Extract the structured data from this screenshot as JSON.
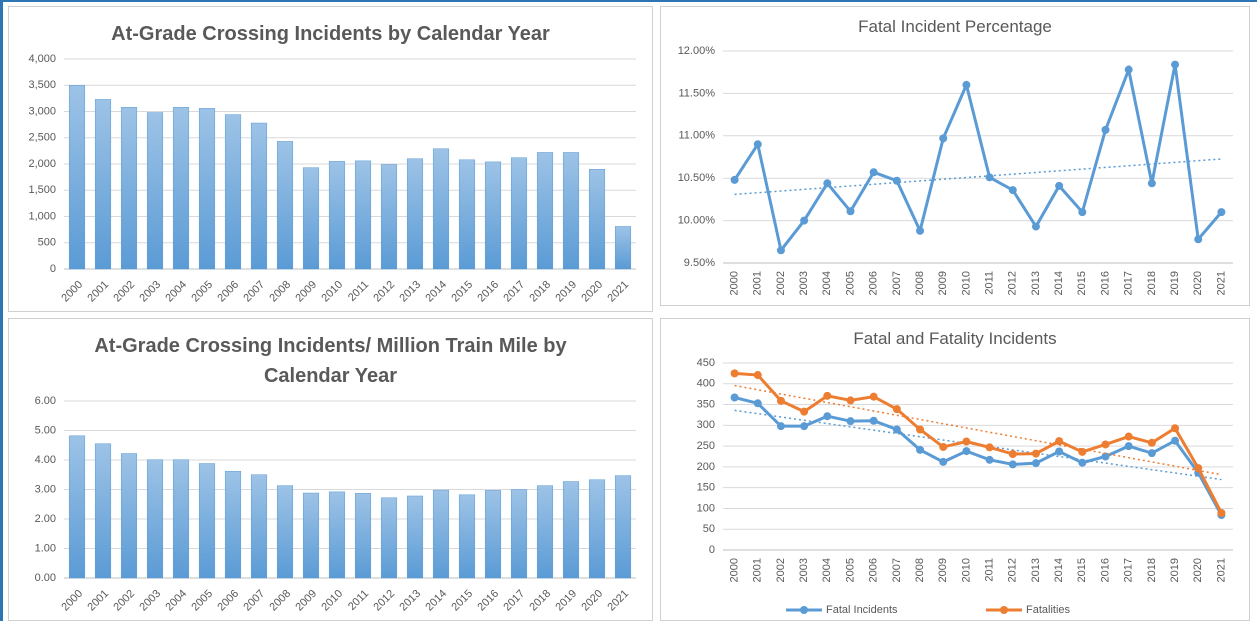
{
  "chart_data": [
    {
      "type": "bar",
      "title": "At-Grade Crossing Incidents by Calendar Year",
      "categories": [
        "2000",
        "2001",
        "2002",
        "2003",
        "2004",
        "2005",
        "2006",
        "2007",
        "2008",
        "2009",
        "2010",
        "2011",
        "2012",
        "2013",
        "2014",
        "2015",
        "2016",
        "2017",
        "2018",
        "2019",
        "2020",
        "2021"
      ],
      "values": [
        3500,
        3230,
        3080,
        2980,
        3080,
        3060,
        2940,
        2780,
        2430,
        1930,
        2050,
        2060,
        1990,
        2100,
        2290,
        2080,
        2040,
        2120,
        2220,
        2220,
        1900,
        810
      ],
      "color": "#5b9bd5",
      "ylim": [
        0,
        4000
      ],
      "yticks": [
        0,
        500,
        {
          "value": 1000,
          "label": "1,000"
        },
        {
          "value": 1500,
          "label": "1,500"
        },
        {
          "value": 2000,
          "label": "2,000"
        },
        {
          "value": 2500,
          "label": "2,500"
        },
        {
          "value": 3000,
          "label": "3,000"
        },
        {
          "value": 3500,
          "label": "3,500"
        },
        {
          "value": 4000,
          "label": "4,000"
        }
      ],
      "grid": true
    },
    {
      "type": "line",
      "title": "Fatal Incident Percentage",
      "categories": [
        "2000",
        "2001",
        "2002",
        "2003",
        "2004",
        "2005",
        "2006",
        "2007",
        "2008",
        "2009",
        "2010",
        "2011",
        "2012",
        "2013",
        "2014",
        "2015",
        "2016",
        "2017",
        "2018",
        "2019",
        "2020",
        "2021"
      ],
      "series": [
        {
          "name": "Fatal Incident Percentage",
          "color": "#5b9bd5",
          "values": [
            10.48,
            10.9,
            9.65,
            10.0,
            10.44,
            10.11,
            10.57,
            10.47,
            9.88,
            10.97,
            11.6,
            10.51,
            10.36,
            9.93,
            10.41,
            10.1,
            11.07,
            11.78,
            10.44,
            11.84,
            9.78,
            10.1
          ]
        }
      ],
      "ylim": [
        9.5,
        12.0
      ],
      "yticks": [
        {
          "value": 9.5,
          "label": "9.50%"
        },
        {
          "value": 10.0,
          "label": "10.00%"
        },
        {
          "value": 10.5,
          "label": "10.50%"
        },
        {
          "value": 11.0,
          "label": "11.00%"
        },
        {
          "value": 11.5,
          "label": "11.50%"
        },
        {
          "value": 12.0,
          "label": "12.00%"
        }
      ],
      "grid": true,
      "trendline": true
    },
    {
      "type": "bar",
      "title": "At-Grade Crossing Incidents/ Million Train Mile by Calendar Year",
      "categories": [
        "2000",
        "2001",
        "2002",
        "2003",
        "2004",
        "2005",
        "2006",
        "2007",
        "2008",
        "2009",
        "2010",
        "2011",
        "2012",
        "2013",
        "2014",
        "2015",
        "2016",
        "2017",
        "2018",
        "2019",
        "2020",
        "2021"
      ],
      "values": [
        4.82,
        4.55,
        4.22,
        4.01,
        4.01,
        3.88,
        3.62,
        3.5,
        3.13,
        2.88,
        2.92,
        2.87,
        2.72,
        2.78,
        2.98,
        2.82,
        2.97,
        3.0,
        3.13,
        3.27,
        3.33,
        3.47
      ],
      "color": "#5b9bd5",
      "ylim": [
        0,
        6
      ],
      "yticks": [
        {
          "value": 0,
          "label": "0.00"
        },
        {
          "value": 1,
          "label": "1.00"
        },
        {
          "value": 2,
          "label": "2.00"
        },
        {
          "value": 3,
          "label": "3.00"
        },
        {
          "value": 4,
          "label": "4.00"
        },
        {
          "value": 5,
          "label": "5.00"
        },
        {
          "value": 6,
          "label": "6.00"
        }
      ],
      "grid": true
    },
    {
      "type": "line",
      "title": "Fatal and Fatality Incidents",
      "categories": [
        "2000",
        "2001",
        "2002",
        "2003",
        "2004",
        "2005",
        "2006",
        "2007",
        "2008",
        "2009",
        "2010",
        "2011",
        "2012",
        "2013",
        "2014",
        "2015",
        "2016",
        "2017",
        "2018",
        "2019",
        "2020",
        "2021"
      ],
      "series": [
        {
          "name": "Fatal Incidents",
          "color": "#5b9bd5",
          "values": [
            367,
            353,
            298,
            298,
            322,
            310,
            311,
            290,
            241,
            212,
            238,
            217,
            206,
            209,
            237,
            210,
            225,
            250,
            233,
            263,
            186,
            84
          ]
        },
        {
          "name": "Fatalities",
          "color": "#ed7d31",
          "values": [
            425,
            421,
            359,
            333,
            371,
            360,
            369,
            339,
            290,
            248,
            261,
            247,
            231,
            232,
            262,
            236,
            254,
            273,
            258,
            293,
            197,
            89
          ]
        }
      ],
      "ylim": [
        0,
        450
      ],
      "yticks": [
        0,
        50,
        100,
        150,
        200,
        250,
        300,
        350,
        400,
        450
      ],
      "grid": true,
      "trendline": true,
      "legend": "bottom"
    }
  ]
}
